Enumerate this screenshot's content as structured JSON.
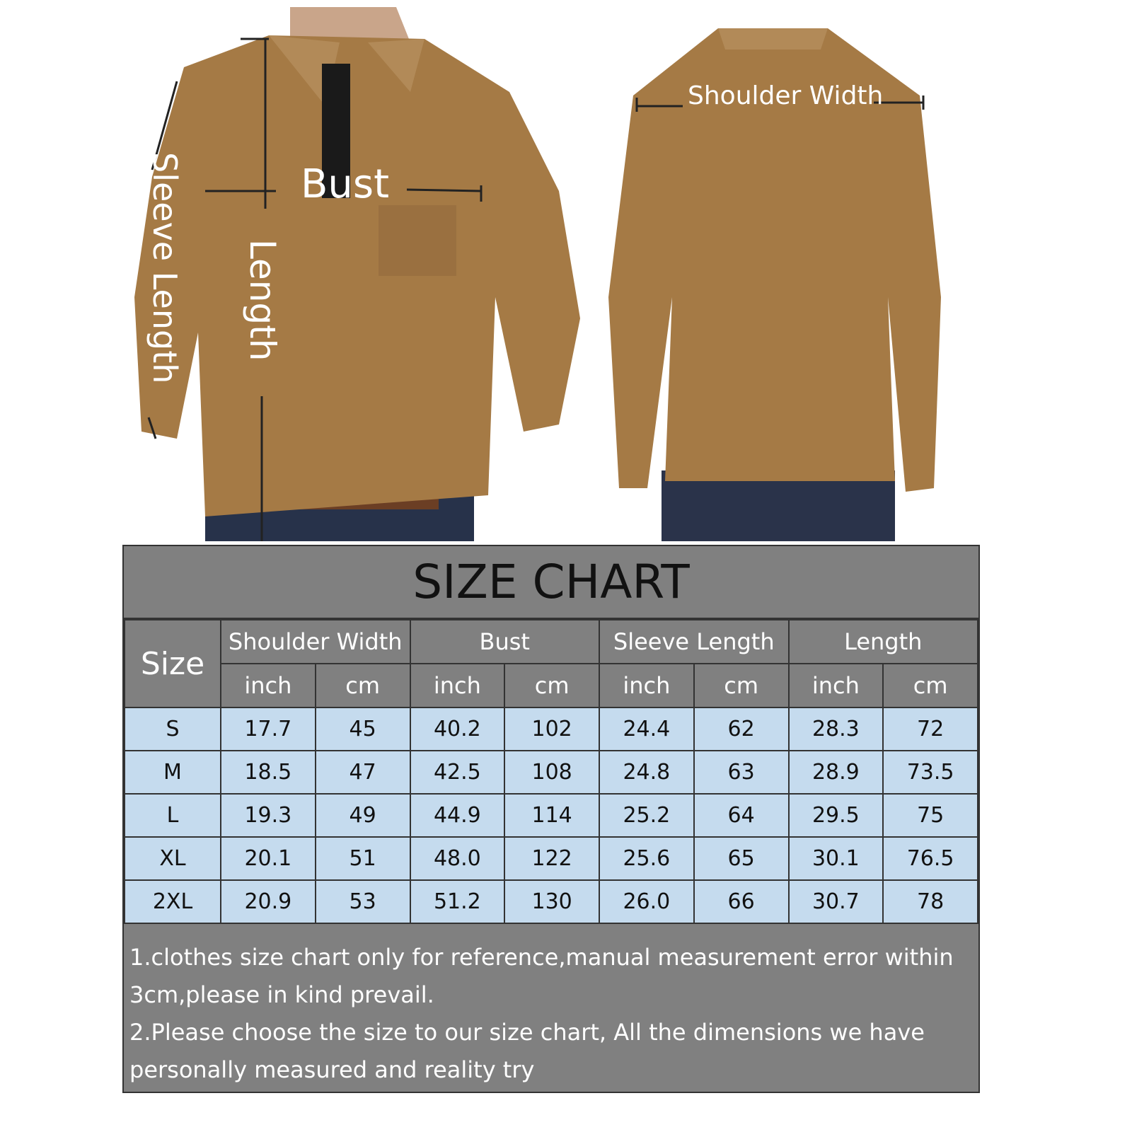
{
  "labels": {
    "bust": "Bust",
    "length": "Length",
    "sleeve_length": "Sleeve Length",
    "shoulder_width": "Shoulder Width"
  },
  "colors": {
    "shirt": "#a57a45",
    "table_header": "#808080",
    "table_cell": "#c5dbee"
  },
  "chart": {
    "title": "SIZE CHART",
    "size_header": "Size",
    "groups": [
      "Shoulder Width",
      "Bust",
      "Sleeve Length",
      "Length"
    ],
    "units": [
      "inch",
      "cm",
      "inch",
      "cm",
      "inch",
      "cm",
      "inch",
      "cm"
    ],
    "rows": [
      {
        "size": "S",
        "values": [
          "17.7",
          "45",
          "40.2",
          "102",
          "24.4",
          "62",
          "28.3",
          "72"
        ]
      },
      {
        "size": "M",
        "values": [
          "18.5",
          "47",
          "42.5",
          "108",
          "24.8",
          "63",
          "28.9",
          "73.5"
        ]
      },
      {
        "size": "L",
        "values": [
          "19.3",
          "49",
          "44.9",
          "114",
          "25.2",
          "64",
          "29.5",
          "75"
        ]
      },
      {
        "size": "XL",
        "values": [
          "20.1",
          "51",
          "48.0",
          "122",
          "25.6",
          "65",
          "30.1",
          "76.5"
        ]
      },
      {
        "size": "2XL",
        "values": [
          "20.9",
          "53",
          "51.2",
          "130",
          "26.0",
          "66",
          "30.7",
          "78"
        ]
      }
    ],
    "notes": [
      "1.clothes size chart only for reference,manual measurement error within 3cm,please in kind prevail.",
      "2.Please choose the size to our size chart, All the dimensions we have personally measured and reality try"
    ]
  }
}
